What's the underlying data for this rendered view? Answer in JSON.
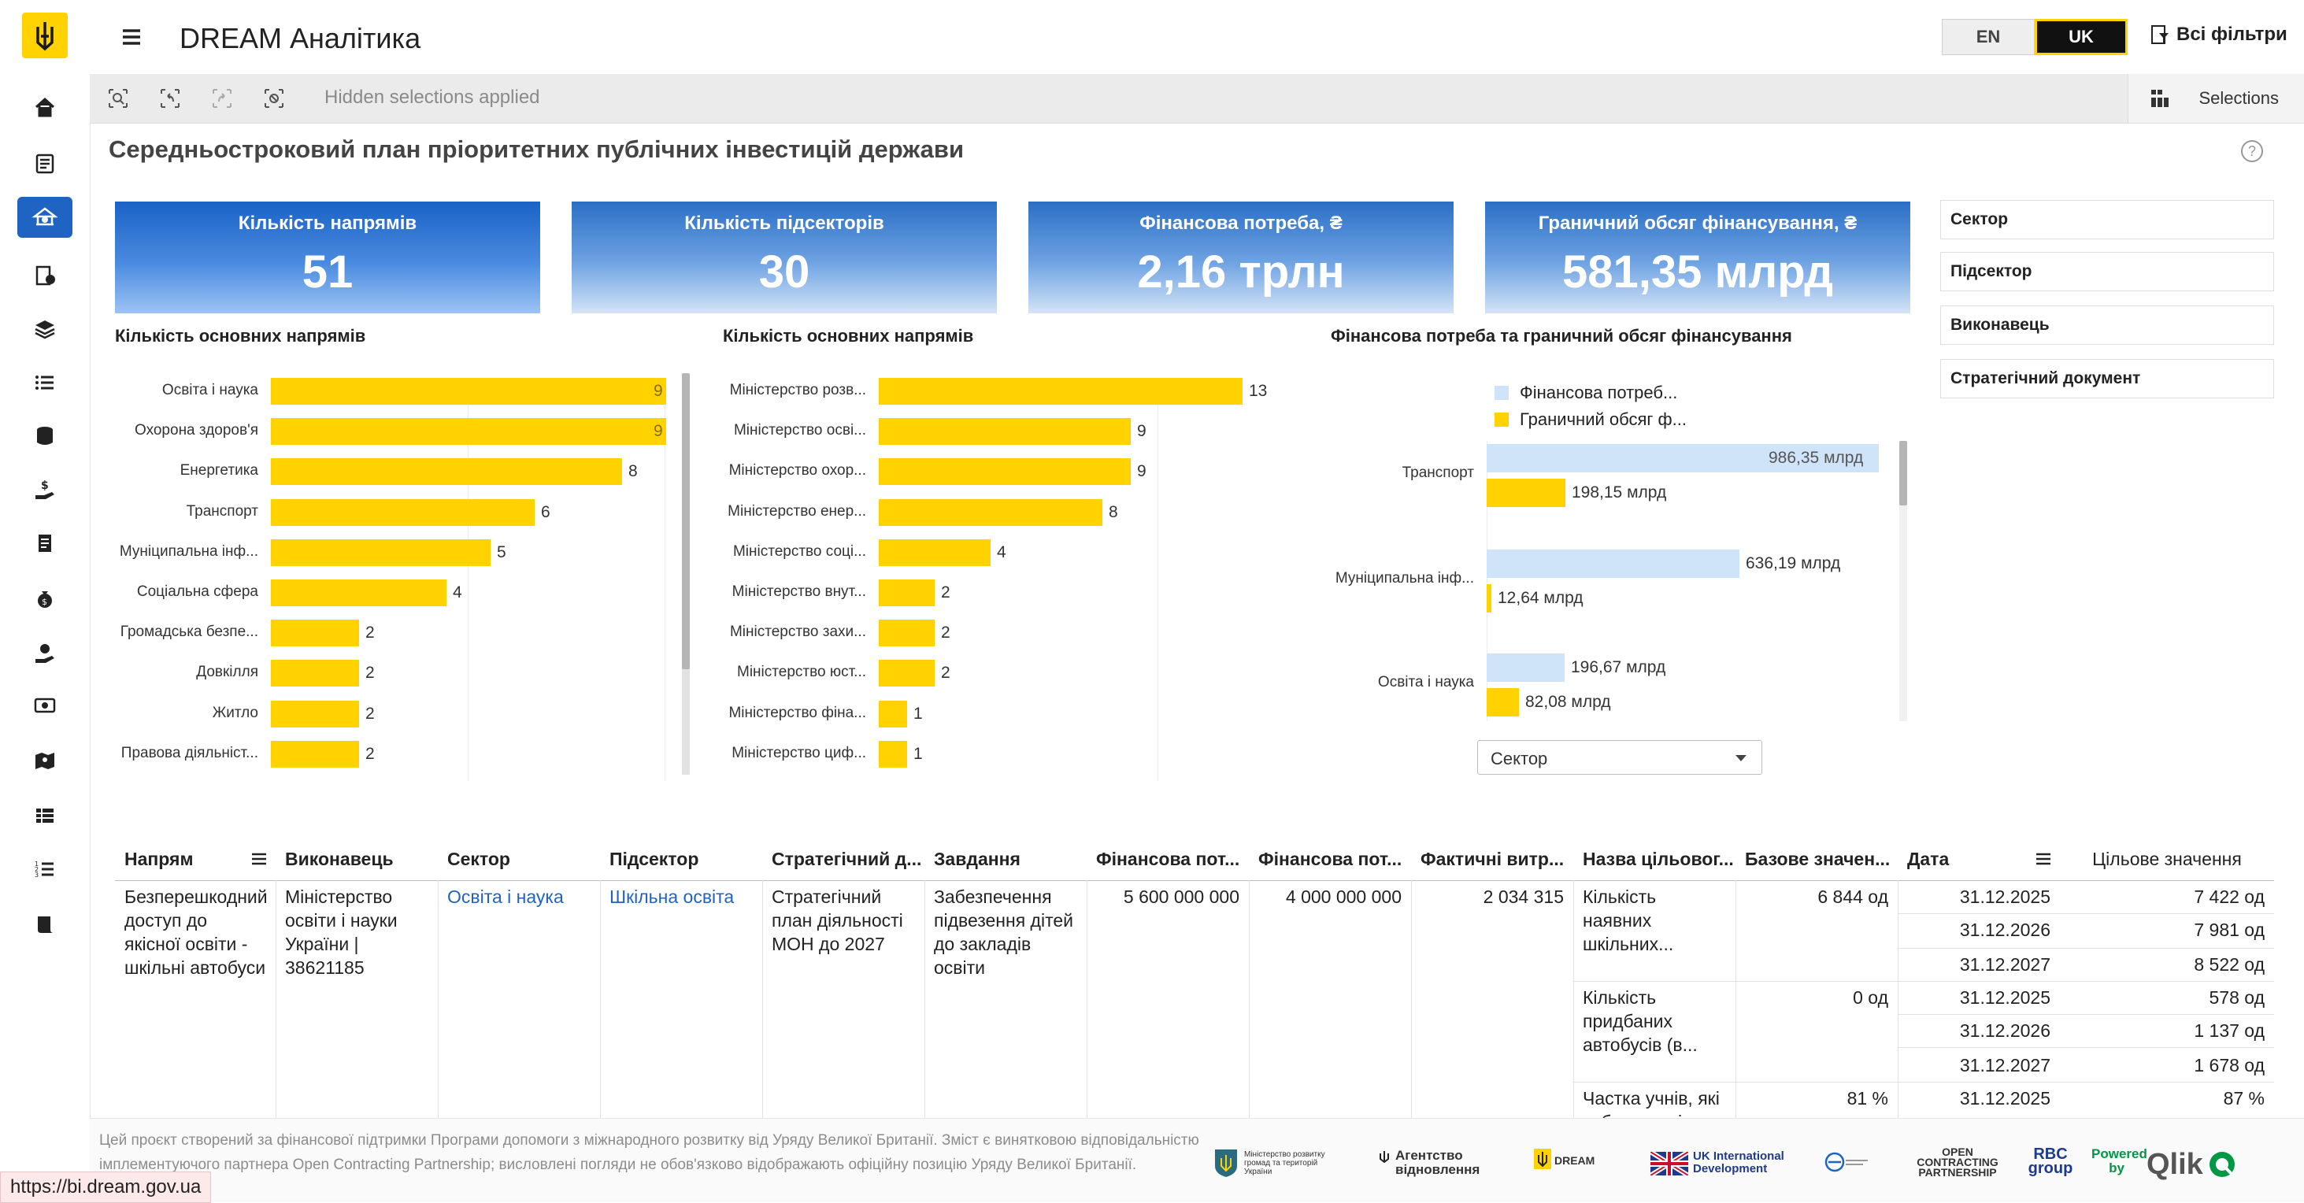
{
  "app": {
    "title": "DREAM Аналітика",
    "lang_en": "EN",
    "lang_uk": "UK",
    "all_filters": "Всі фільтри",
    "hidden_selections": "Hidden selections applied",
    "selections_label": "Selections"
  },
  "sheet": {
    "title": "Середньостроковий план пріоритетних публічних інвестицій держави",
    "help": "?"
  },
  "kpis": [
    {
      "label": "Кількість напрямів",
      "value": "51"
    },
    {
      "label": "Кількість підсекторів",
      "value": "30"
    },
    {
      "label": "Фінансова потреба, ₴",
      "value": "2,16 трлн"
    },
    {
      "label": "Граничний обсяг фінансування, ₴",
      "value": "581,35 млрд"
    }
  ],
  "filters": [
    "Сектор",
    "Підсектор",
    "Виконавець",
    "Стратегічний документ"
  ],
  "chart_data": [
    {
      "type": "bar",
      "orientation": "horizontal",
      "title": "Кількість основних напрямів",
      "categories": [
        "Освіта і наука",
        "Охорона здоров'я",
        "Енергетика",
        "Транспорт",
        "Муніципальна інф...",
        "Соціальна сфера",
        "Громадська безпе...",
        "Довкілля",
        "Житло",
        "Правова діяльніст..."
      ],
      "values": [
        9,
        9,
        8,
        6,
        5,
        4,
        2,
        2,
        2,
        2
      ],
      "xlim": [
        0,
        9
      ]
    },
    {
      "type": "bar",
      "orientation": "horizontal",
      "title": "Кількість основних напрямів",
      "categories": [
        "Міністерство розв...",
        "Міністерство осві...",
        "Міністерство охор...",
        "Міністерство енер...",
        "Міністерство соці...",
        "Міністерство внут...",
        "Міністерство захи...",
        "Міністерство юст...",
        "Міністерство фіна...",
        "Міністерство циф..."
      ],
      "values": [
        13,
        9,
        9,
        8,
        4,
        2,
        2,
        2,
        1,
        1
      ],
      "xlim": [
        0,
        13
      ]
    },
    {
      "type": "bar",
      "orientation": "horizontal",
      "title": "Фінансова потреба та граничний обсяг фінансування",
      "categories": [
        "Транспорт",
        "Муніципальна інф...",
        "Освіта і наука"
      ],
      "series": [
        {
          "name": "Фінансова потреб...",
          "color": "#cfe3f9",
          "values": [
            986.35,
            636.19,
            196.67
          ],
          "labels": [
            "986,35 млрд",
            "636,19 млрд",
            "196,67 млрд"
          ]
        },
        {
          "name": "Граничний обсяг ф...",
          "color": "#ffd200",
          "values": [
            198.15,
            12.64,
            82.08
          ],
          "labels": [
            "198,15 млрд",
            "12,64 млрд",
            "82,08 млрд"
          ]
        }
      ],
      "unit": "млрд",
      "xlim": [
        0,
        986.35
      ],
      "dimension_selector": "Сектор"
    }
  ],
  "table": {
    "headers": [
      "Напрям",
      "Виконавець",
      "Сектор",
      "Підсектор",
      "Стратегічний д...",
      "Завдання",
      "Фінансова пот...",
      "Фінансова пот...",
      "Фактичні витр...",
      "Назва цільовог...",
      "Базове значен...",
      "Дата",
      "Цільове значення"
    ],
    "row": {
      "direction": "Безперешкодний доступ до якісної освіти - шкільні автобуси",
      "executor": "Міністерство освіти і науки України | 38621185",
      "sector": "Освіта і наука",
      "subsector": "Шкільна освіта",
      "strategic_doc": "Стратегічний план діяльності МОН до 2027",
      "task": "Забезпечення підвезення дітей до закладів освіти",
      "fin_need_1": "5 600 000 000",
      "fin_need_2": "4 000 000 000",
      "actual_spend": "2 034 315",
      "indicators": [
        {
          "name": "Кількість наявних шкільних...",
          "base": "6 844 од",
          "targets": [
            {
              "date": "31.12.2025",
              "value": "7 422 од"
            },
            {
              "date": "31.12.2026",
              "value": "7 981 од"
            },
            {
              "date": "31.12.2027",
              "value": "8 522 од"
            }
          ]
        },
        {
          "name": "Кількість придбаних автобусів (в...",
          "base": "0 од",
          "targets": [
            {
              "date": "31.12.2025",
              "value": "578 од"
            },
            {
              "date": "31.12.2026",
              "value": "1 137 од"
            },
            {
              "date": "31.12.2027",
              "value": "1 678 од"
            }
          ]
        },
        {
          "name": "Частка учнів, які забезпечені...",
          "base": "81 %",
          "targets": [
            {
              "date": "31.12.2025",
              "value": "87 %"
            }
          ]
        }
      ]
    }
  },
  "footer": {
    "disclaimer": "Цей проєкт створений за фінансової підтримки Програми допомоги з міжнародного розвитку від Уряду Великої Британії. Зміст є винятковою відповідальністю імплементуючого партнера Open Contracting Partnership; висловлені погляди не обов'язково відображають офіційну позицію Уряду Великої Британії.",
    "partners": {
      "ministry": "Міністерство розвитку громад та територій України",
      "agency": "Агентство відновлення",
      "dream": "DREAM",
      "ukid": "UK International Development",
      "ocp": "OPEN CONTRACTING PARTNERSHIP",
      "rbc": "RBC group",
      "powered": "Powered by",
      "qlik": "Qlik"
    }
  },
  "status_url": "https://bi.dream.gov.ua"
}
